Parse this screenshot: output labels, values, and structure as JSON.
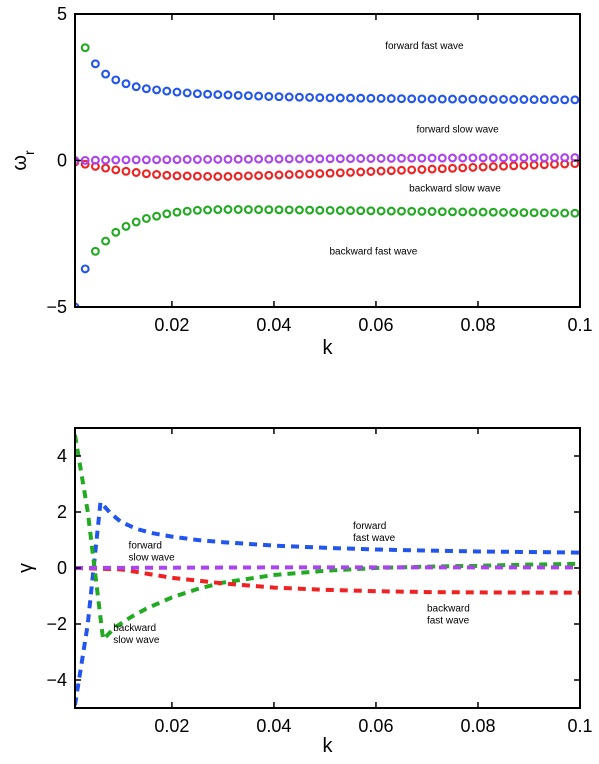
{
  "chart_data": [
    {
      "type": "scatter",
      "xlabel": "k",
      "ylabel": "ω",
      "ylabel_sub": "r",
      "xlim": [
        0.001,
        0.1
      ],
      "ylim": [
        -5,
        5
      ],
      "xticks": [
        0.02,
        0.04,
        0.06,
        0.08,
        0.1
      ],
      "xtick_labels": [
        "0.02",
        "0.04",
        "0.06",
        "0.08",
        "0.1"
      ],
      "yticks": [
        -5,
        0,
        5
      ],
      "ytick_labels": [
        "−5",
        "0",
        "5"
      ],
      "grid": false,
      "marker": "circle-open",
      "series": [
        {
          "color": "#2255ee",
          "x": [
            0.001,
            0.003,
            0.005,
            0.007,
            0.009,
            0.011,
            0.013,
            0.015,
            0.02,
            0.025,
            0.03,
            0.04,
            0.05,
            0.06,
            0.07,
            0.08,
            0.09,
            0.1
          ],
          "y": [
            -5.0,
            -3.7,
            3.3,
            2.95,
            2.75,
            2.62,
            2.52,
            2.45,
            2.35,
            2.28,
            2.24,
            2.18,
            2.14,
            2.12,
            2.1,
            2.09,
            2.08,
            2.07
          ]
        },
        {
          "color": "#22aa22",
          "x": [
            0.001,
            0.003,
            0.005,
            0.007,
            0.009,
            0.011,
            0.013,
            0.015,
            0.02,
            0.025,
            0.03,
            0.04,
            0.05,
            0.06,
            0.07,
            0.08,
            0.09,
            0.1
          ],
          "y": [
            5.2,
            3.85,
            -3.1,
            -2.75,
            -2.45,
            -2.25,
            -2.1,
            -1.98,
            -1.78,
            -1.7,
            -1.67,
            -1.68,
            -1.7,
            -1.72,
            -1.74,
            -1.76,
            -1.78,
            -1.8
          ]
        },
        {
          "color": "#ee2222",
          "x": [
            0.001,
            0.005,
            0.01,
            0.015,
            0.02,
            0.03,
            0.04,
            0.05,
            0.06,
            0.07,
            0.08,
            0.09,
            0.1
          ],
          "y": [
            -0.05,
            -0.2,
            -0.35,
            -0.45,
            -0.52,
            -0.55,
            -0.5,
            -0.44,
            -0.37,
            -0.3,
            -0.23,
            -0.16,
            -0.1
          ]
        },
        {
          "color": "#aa44ee",
          "x": [
            0.001,
            0.01,
            0.02,
            0.04,
            0.06,
            0.08,
            0.1
          ],
          "y": [
            0.0,
            0.02,
            0.03,
            0.05,
            0.07,
            0.09,
            0.1
          ]
        }
      ],
      "annotations": [
        {
          "lines": [
            "forward fast wave"
          ],
          "x": 0.0695,
          "y": 3.8
        },
        {
          "lines": [
            "forward slow wave"
          ],
          "x": 0.076,
          "y": 0.95
        },
        {
          "lines": [
            "backward slow wave"
          ],
          "x": 0.0755,
          "y": -1.05
        },
        {
          "lines": [
            "backward fast wave"
          ],
          "x": 0.0595,
          "y": -3.2
        }
      ]
    },
    {
      "type": "line",
      "xlabel": "k",
      "ylabel": "γ",
      "xlim": [
        0.001,
        0.1
      ],
      "ylim": [
        -5,
        5
      ],
      "xticks": [
        0.02,
        0.04,
        0.06,
        0.08,
        0.1
      ],
      "xtick_labels": [
        "0.02",
        "0.04",
        "0.06",
        "0.08",
        "0.1"
      ],
      "yticks": [
        -4,
        -2,
        0,
        2,
        4
      ],
      "ytick_labels": [
        "−4",
        "−2",
        "0",
        "2",
        "4"
      ],
      "grid": false,
      "line_style": "dashed",
      "series": [
        {
          "color": "#2255ee",
          "x": [
            0.001,
            0.0035,
            0.006,
            0.008,
            0.01,
            0.013,
            0.016,
            0.02,
            0.025,
            0.03,
            0.04,
            0.05,
            0.06,
            0.07,
            0.08,
            0.09,
            0.1
          ],
          "y": [
            -4.9,
            -2.0,
            2.35,
            1.95,
            1.65,
            1.4,
            1.25,
            1.12,
            1.0,
            0.92,
            0.8,
            0.72,
            0.66,
            0.62,
            0.59,
            0.57,
            0.55
          ]
        },
        {
          "color": "#22aa22",
          "x": [
            0.001,
            0.0035,
            0.0065,
            0.009,
            0.012,
            0.015,
            0.02,
            0.025,
            0.03,
            0.04,
            0.05,
            0.06,
            0.07,
            0.08,
            0.09,
            0.1
          ],
          "y": [
            4.75,
            2.0,
            -2.55,
            -2.1,
            -1.75,
            -1.45,
            -1.05,
            -0.75,
            -0.52,
            -0.25,
            -0.1,
            0.0,
            0.05,
            0.08,
            0.12,
            0.15
          ]
        },
        {
          "color": "#ee2222",
          "x": [
            0.001,
            0.01,
            0.015,
            0.02,
            0.03,
            0.04,
            0.05,
            0.06,
            0.07,
            0.08,
            0.09,
            0.1
          ],
          "y": [
            0.0,
            -0.05,
            -0.2,
            -0.35,
            -0.55,
            -0.7,
            -0.78,
            -0.83,
            -0.86,
            -0.87,
            -0.88,
            -0.88
          ]
        },
        {
          "color": "#aa44ee",
          "x": [
            0.001,
            0.02,
            0.04,
            0.06,
            0.08,
            0.1
          ],
          "y": [
            0.0,
            0.01,
            0.02,
            0.02,
            0.02,
            0.02
          ]
        }
      ],
      "annotations": [
        {
          "lines": [
            "forward",
            "fast wave"
          ],
          "x": 0.0555,
          "y": 1.4
        },
        {
          "lines": [
            "forward",
            "slow wave"
          ],
          "x": 0.0115,
          "y": 0.7
        },
        {
          "lines": [
            "backward",
            "fast wave"
          ],
          "x": 0.07,
          "y": -1.55
        },
        {
          "lines": [
            "backward",
            "slow wave"
          ],
          "x": 0.0085,
          "y": -2.25
        }
      ]
    }
  ]
}
